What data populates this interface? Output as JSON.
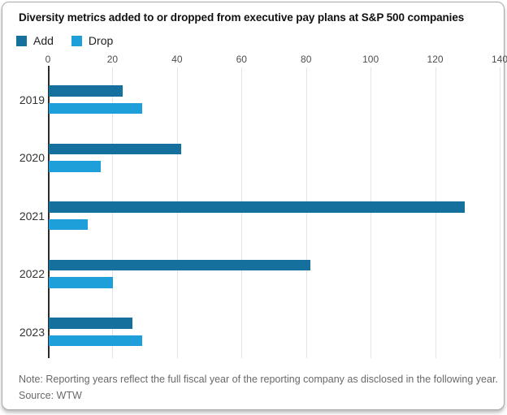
{
  "card": {
    "title": "Diversity metrics added to or dropped from executive pay plans at S&P 500 companies",
    "note": "Note: Reporting years reflect the full fiscal year of the reporting company as disclosed in the following year.",
    "source": "Source: WTW"
  },
  "legend": [
    {
      "label": "Add",
      "color": "#15709e"
    },
    {
      "label": "Drop",
      "color": "#1f9fd9"
    }
  ],
  "chart_data": {
    "type": "bar",
    "orientation": "horizontal",
    "title": "Diversity metrics added to or dropped from executive pay plans at S&P 500 companies",
    "categories": [
      "2019",
      "2020",
      "2021",
      "2022",
      "2023"
    ],
    "series": [
      {
        "name": "Add",
        "color": "#15709e",
        "values": [
          23,
          41,
          129,
          81,
          26
        ]
      },
      {
        "name": "Drop",
        "color": "#1f9fd9",
        "values": [
          29,
          16,
          12,
          20,
          29
        ]
      }
    ],
    "xlabel": "",
    "ylabel": "",
    "xlim": [
      0,
      140
    ],
    "xticks": [
      0,
      20,
      40,
      60,
      80,
      100,
      120,
      140
    ],
    "grid": true,
    "legend_position": "top-left",
    "note": "Note: Reporting years reflect the full fiscal year of the reporting company as disclosed in the following year.",
    "source": "Source: WTW"
  }
}
